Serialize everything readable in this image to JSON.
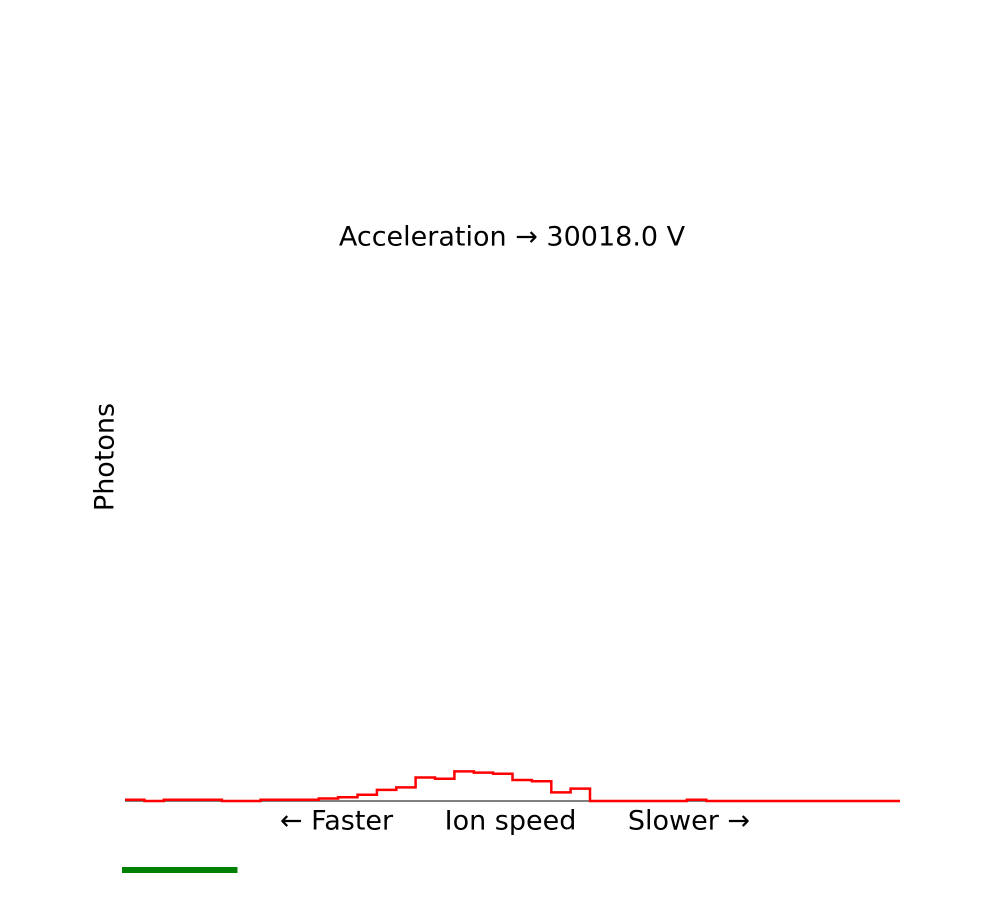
{
  "chart_data": {
    "type": "line",
    "title": "Acceleration $\\rightarrow$ 30018.0 V",
    "title_display": "Acceleration → 30018.0 V",
    "xlabel": "← Faster      Ion speed      Slower →",
    "ylabel": "Photons",
    "series": [
      {
        "step": "post",
        "color": "#ff0000",
        "values": [
          1,
          0,
          1,
          1,
          1,
          0,
          0,
          1,
          1,
          1,
          2,
          3,
          5,
          9,
          11,
          19,
          18,
          24,
          23,
          22,
          17,
          16,
          7,
          10,
          0,
          0,
          0,
          0,
          0,
          1,
          0,
          0,
          0,
          0,
          0,
          0,
          0,
          0,
          0,
          0
        ]
      }
    ],
    "xlim": [
      0,
      40
    ],
    "ylim": [
      0,
      600
    ],
    "grid": false,
    "axes_visible": false,
    "progress": {
      "color": "#008000",
      "fraction": 0.15
    }
  }
}
